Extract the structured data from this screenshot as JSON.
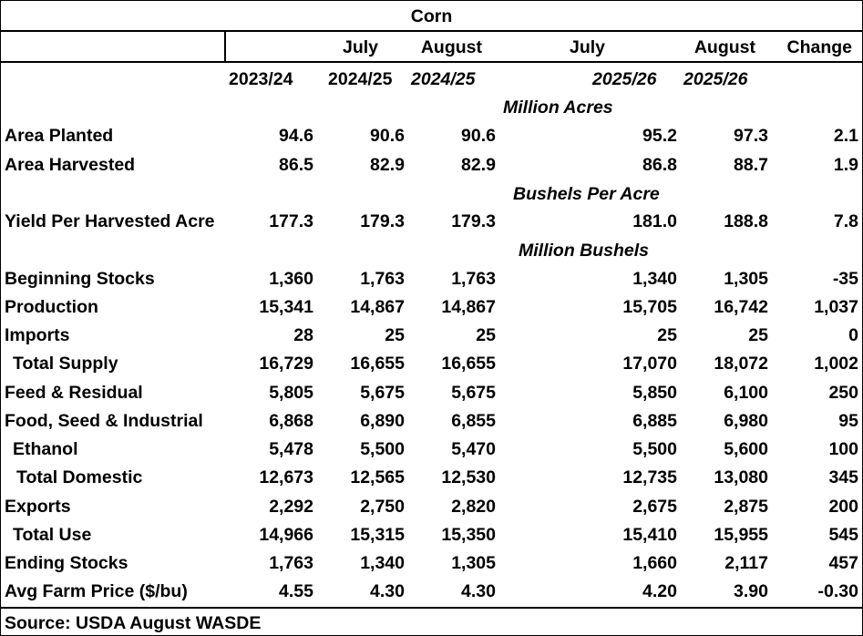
{
  "title": "Corn",
  "header_row1": [
    "",
    "July",
    "August",
    "July",
    "August",
    "Change"
  ],
  "header_row2": [
    "2023/24",
    "2024/25",
    "2024/25",
    "2025/26",
    "2025/26"
  ],
  "units": {
    "acres": "Million Acres",
    "yield": "Bushels Per Acre",
    "bushels": "Million Bushels"
  },
  "rows": [
    {
      "label": "Area Planted",
      "values": [
        "94.6",
        "90.6",
        "90.6",
        "95.2",
        "97.3",
        "2.1"
      ]
    },
    {
      "label": "Area Harvested",
      "values": [
        "86.5",
        "82.9",
        "82.9",
        "86.8",
        "88.7",
        "1.9"
      ]
    },
    {
      "label": "Yield Per Harvested Acre",
      "values": [
        "177.3",
        "179.3",
        "179.3",
        "181.0",
        "188.8",
        "7.8"
      ]
    },
    {
      "label": "Beginning Stocks",
      "values": [
        "1,360",
        "1,763",
        "1,763",
        "1,340",
        "1,305",
        "-35"
      ]
    },
    {
      "label": "Production",
      "values": [
        "15,341",
        "14,867",
        "14,867",
        "15,705",
        "16,742",
        "1,037"
      ]
    },
    {
      "label": "Imports",
      "values": [
        "28",
        "25",
        "25",
        "25",
        "25",
        "0"
      ]
    },
    {
      "label": "Total Supply",
      "values": [
        "16,729",
        "16,655",
        "16,655",
        "17,070",
        "18,072",
        "1,002"
      ]
    },
    {
      "label": "Feed & Residual",
      "values": [
        "5,805",
        "5,675",
        "5,675",
        "5,850",
        "6,100",
        "250"
      ]
    },
    {
      "label": "Food, Seed & Industrial",
      "values": [
        "6,868",
        "6,890",
        "6,855",
        "6,885",
        "6,980",
        "95"
      ]
    },
    {
      "label": "Ethanol",
      "values": [
        "5,478",
        "5,500",
        "5,470",
        "5,500",
        "5,600",
        "100"
      ]
    },
    {
      "label": "Total Domestic",
      "values": [
        "12,673",
        "12,565",
        "12,530",
        "12,735",
        "13,080",
        "345"
      ]
    },
    {
      "label": "Exports",
      "values": [
        "2,292",
        "2,750",
        "2,820",
        "2,675",
        "2,875",
        "200"
      ]
    },
    {
      "label": "Total Use",
      "values": [
        "14,966",
        "15,315",
        "15,350",
        "15,410",
        "15,955",
        "545"
      ]
    },
    {
      "label": "Ending Stocks",
      "values": [
        "1,763",
        "1,340",
        "1,305",
        "1,660",
        "2,117",
        "457"
      ]
    },
    {
      "label": "Avg Farm Price ($/bu)",
      "values": [
        "4.55",
        "4.30",
        "4.30",
        "4.20",
        "3.90",
        "-0.30"
      ]
    }
  ],
  "source": "Source: USDA August WASDE"
}
